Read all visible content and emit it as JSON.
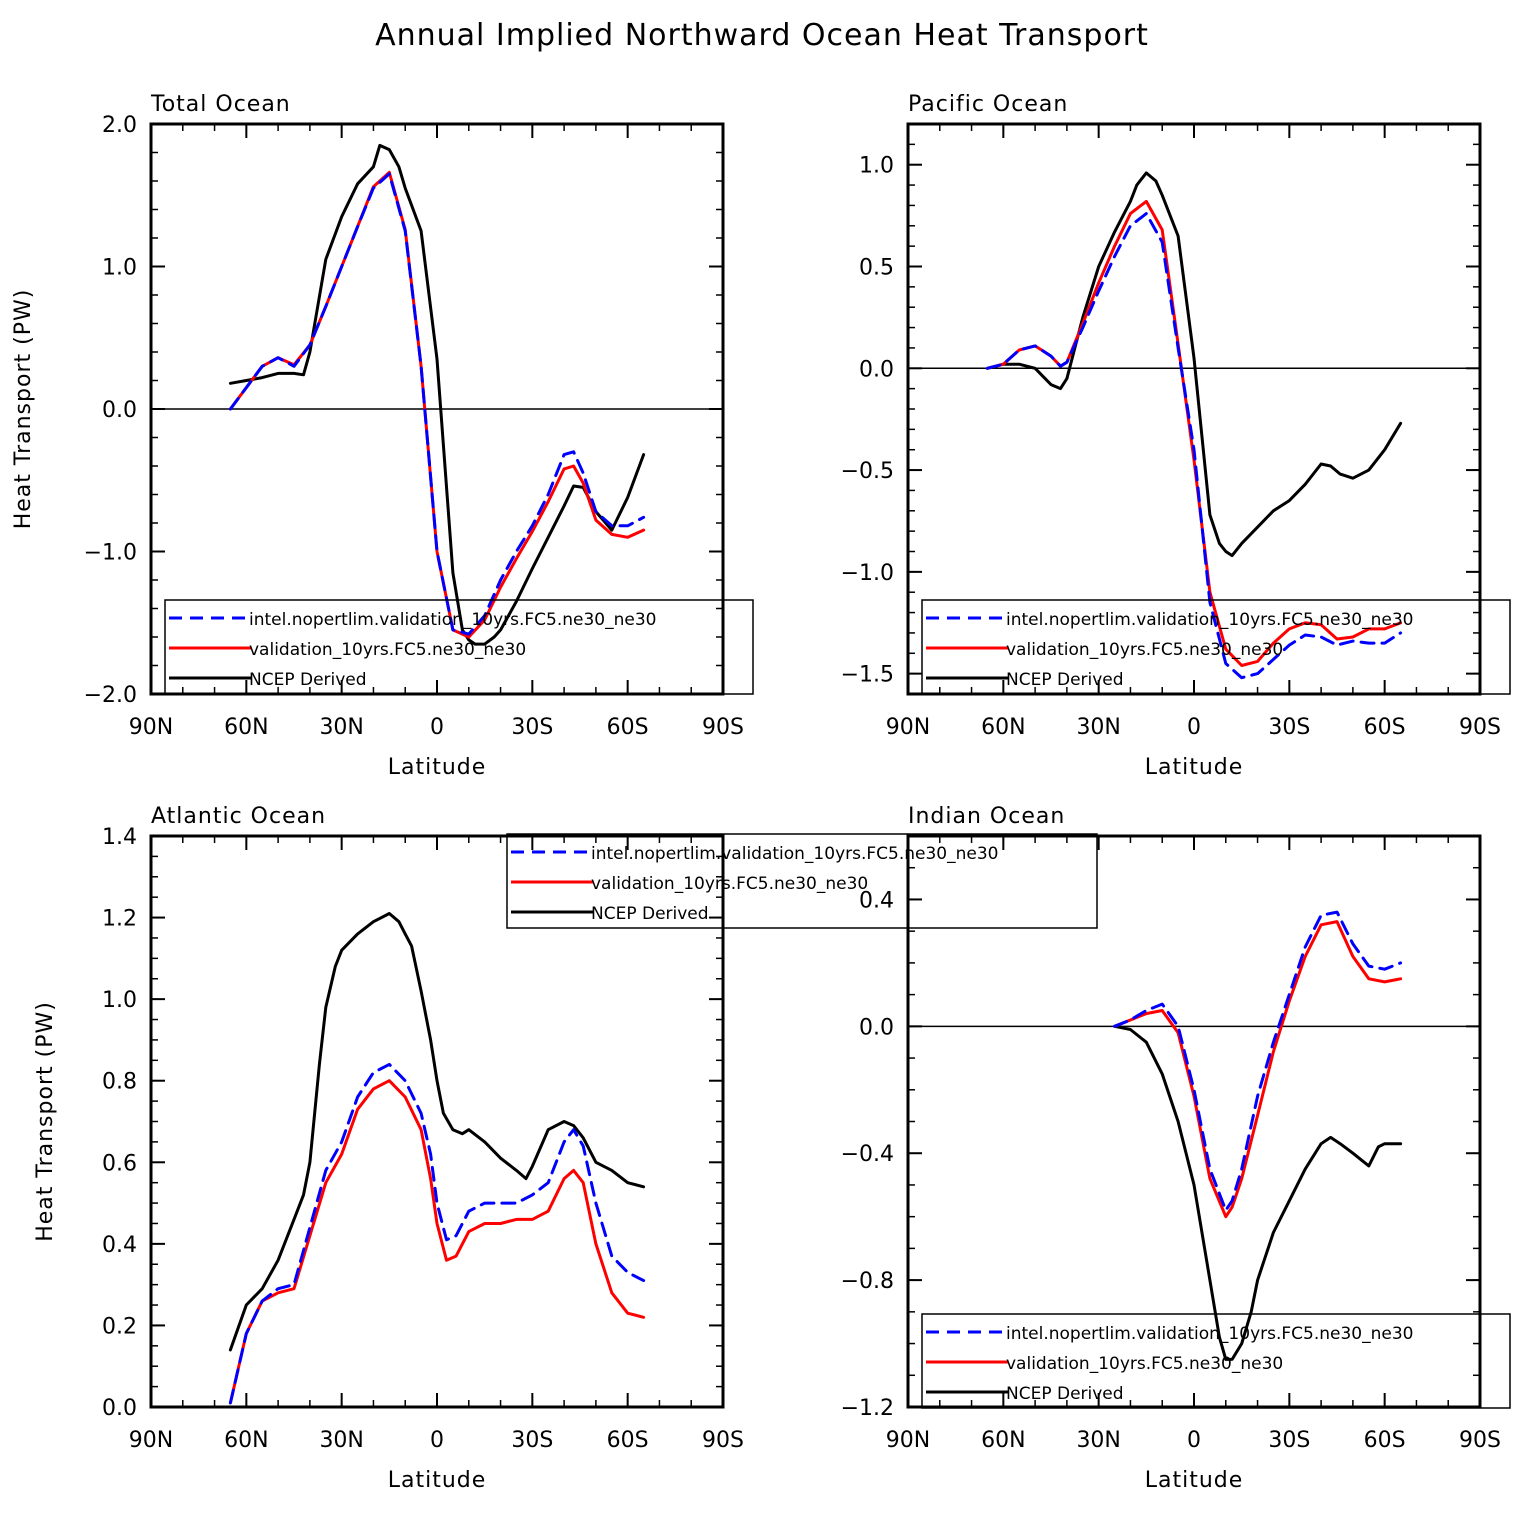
{
  "figure_title": "Annual Implied Northward Ocean Heat Transport",
  "colors": {
    "model1": "#0000ff",
    "model2": "#ff0000",
    "obs": "#000000",
    "axes": "#000000"
  },
  "chart_data": [
    {
      "type": "line",
      "title": "Total Ocean",
      "xlabel": "Latitude",
      "ylabel": "Heat Transport (PW)",
      "xlim": [
        90,
        -90
      ],
      "ylim": [
        -2.0,
        2.0
      ],
      "xticks": [
        90,
        60,
        30,
        0,
        -30,
        -60,
        -90
      ],
      "xtick_labels": [
        "90N",
        "60N",
        "30N",
        "0",
        "30S",
        "60S",
        "90S"
      ],
      "yticks": [
        -2.0,
        -1.0,
        0.0,
        1.0,
        2.0
      ],
      "ytick_labels": [
        "−2.0",
        "−1.0",
        "0.0",
        "1.0",
        "2.0"
      ],
      "yminor_step": 0.2,
      "zero_line": true,
      "legend_position": "lower-left",
      "legend": [
        "intel.nopertlim.validation_10yrs.FC5.ne30_ne30",
        "validation_10yrs.FC5.ne30_ne30",
        "NCEP Derived"
      ],
      "series": [
        {
          "name": "intel.nopertlim.validation_10yrs.FC5.ne30_ne30",
          "style": "dashed",
          "color": "#0000ff",
          "x": [
            65,
            60,
            55,
            50,
            45,
            40,
            35,
            30,
            25,
            20,
            15,
            10,
            5,
            0,
            -5,
            -10,
            -15,
            -20,
            -25,
            -30,
            -35,
            -40,
            -43,
            -46,
            -50,
            -55,
            -60,
            -65
          ],
          "y": [
            0.0,
            0.15,
            0.3,
            0.36,
            0.3,
            0.45,
            0.72,
            1.0,
            1.28,
            1.55,
            1.65,
            1.25,
            0.3,
            -1.0,
            -1.55,
            -1.58,
            -1.45,
            -1.2,
            -1.0,
            -0.82,
            -0.6,
            -0.32,
            -0.3,
            -0.45,
            -0.72,
            -0.82,
            -0.82,
            -0.76
          ]
        },
        {
          "name": "validation_10yrs.FC5.ne30_ne30",
          "style": "solid",
          "color": "#ff0000",
          "x": [
            65,
            60,
            55,
            50,
            45,
            40,
            35,
            30,
            25,
            20,
            15,
            10,
            5,
            0,
            -5,
            -10,
            -15,
            -20,
            -25,
            -30,
            -35,
            -40,
            -43,
            -46,
            -50,
            -55,
            -60,
            -65
          ],
          "y": [
            0.0,
            0.15,
            0.3,
            0.36,
            0.31,
            0.45,
            0.72,
            1.0,
            1.28,
            1.56,
            1.66,
            1.26,
            0.3,
            -1.0,
            -1.55,
            -1.6,
            -1.48,
            -1.25,
            -1.05,
            -0.86,
            -0.65,
            -0.42,
            -0.4,
            -0.52,
            -0.78,
            -0.88,
            -0.9,
            -0.85
          ]
        },
        {
          "name": "NCEP Derived",
          "style": "solid",
          "color": "#000000",
          "x": [
            65,
            60,
            55,
            50,
            45,
            42,
            40,
            35,
            30,
            25,
            20,
            18,
            15,
            12,
            10,
            5,
            0,
            -5,
            -8,
            -10,
            -12,
            -15,
            -18,
            -20,
            -25,
            -30,
            -35,
            -40,
            -43,
            -46,
            -50,
            -55,
            -60,
            -65
          ],
          "y": [
            0.18,
            0.2,
            0.22,
            0.25,
            0.25,
            0.24,
            0.4,
            1.05,
            1.35,
            1.58,
            1.7,
            1.85,
            1.82,
            1.7,
            1.55,
            1.25,
            0.35,
            -1.15,
            -1.55,
            -1.62,
            -1.65,
            -1.65,
            -1.6,
            -1.55,
            -1.35,
            -1.12,
            -0.9,
            -0.68,
            -0.54,
            -0.55,
            -0.72,
            -0.85,
            -0.62,
            -0.32
          ]
        }
      ]
    },
    {
      "type": "line",
      "title": "Pacific Ocean",
      "xlabel": "Latitude",
      "ylabel": "",
      "xlim": [
        90,
        -90
      ],
      "ylim": [
        -1.6,
        1.2
      ],
      "xticks": [
        90,
        60,
        30,
        0,
        -30,
        -60,
        -90
      ],
      "xtick_labels": [
        "90N",
        "60N",
        "30N",
        "0",
        "30S",
        "60S",
        "90S"
      ],
      "yticks": [
        -1.5,
        -1.0,
        -0.5,
        0.0,
        0.5,
        1.0
      ],
      "ytick_labels": [
        "−1.5",
        "−1.0",
        "−0.5",
        "0.0",
        "0.5",
        "1.0"
      ],
      "yminor_step": 0.1,
      "zero_line": true,
      "legend_position": "lower-left",
      "legend": [
        "intel.nopertlim.validation_10yrs.FC5.ne30_ne30",
        "validation_10yrs.FC5.ne30_ne30",
        "NCEP Derived"
      ],
      "series": [
        {
          "name": "intel.nopertlim.validation_10yrs.FC5.ne30_ne30",
          "style": "dashed",
          "color": "#0000ff",
          "x": [
            65,
            60,
            55,
            50,
            45,
            42,
            40,
            35,
            30,
            25,
            20,
            15,
            10,
            5,
            0,
            -5,
            -10,
            -15,
            -20,
            -25,
            -30,
            -35,
            -40,
            -45,
            -50,
            -55,
            -60,
            -65
          ],
          "y": [
            0.0,
            0.02,
            0.09,
            0.11,
            0.06,
            0.01,
            0.03,
            0.2,
            0.38,
            0.55,
            0.7,
            0.76,
            0.62,
            0.1,
            -0.4,
            -1.15,
            -1.45,
            -1.52,
            -1.5,
            -1.43,
            -1.36,
            -1.31,
            -1.32,
            -1.36,
            -1.34,
            -1.35,
            -1.35,
            -1.3
          ]
        },
        {
          "name": "validation_10yrs.FC5.ne30_ne30",
          "style": "solid",
          "color": "#ff0000",
          "x": [
            65,
            60,
            55,
            50,
            45,
            42,
            40,
            35,
            30,
            25,
            20,
            15,
            10,
            5,
            0,
            -5,
            -10,
            -15,
            -20,
            -25,
            -30,
            -35,
            -40,
            -45,
            -50,
            -55,
            -60,
            -65
          ],
          "y": [
            0.0,
            0.02,
            0.09,
            0.11,
            0.06,
            0.01,
            0.03,
            0.22,
            0.42,
            0.6,
            0.76,
            0.82,
            0.68,
            0.12,
            -0.45,
            -1.1,
            -1.38,
            -1.46,
            -1.44,
            -1.35,
            -1.28,
            -1.25,
            -1.26,
            -1.33,
            -1.32,
            -1.28,
            -1.28,
            -1.25
          ]
        },
        {
          "name": "NCEP Derived",
          "style": "solid",
          "color": "#000000",
          "x": [
            65,
            60,
            55,
            50,
            45,
            42,
            40,
            35,
            30,
            25,
            20,
            18,
            15,
            12,
            10,
            5,
            0,
            -5,
            -8,
            -10,
            -12,
            -15,
            -20,
            -25,
            -30,
            -35,
            -40,
            -43,
            -46,
            -50,
            -55,
            -60,
            -65
          ],
          "y": [
            0.0,
            0.02,
            0.02,
            0.0,
            -0.08,
            -0.1,
            -0.05,
            0.25,
            0.5,
            0.67,
            0.82,
            0.9,
            0.96,
            0.92,
            0.85,
            0.65,
            0.05,
            -0.72,
            -0.86,
            -0.9,
            -0.92,
            -0.86,
            -0.78,
            -0.7,
            -0.65,
            -0.57,
            -0.47,
            -0.48,
            -0.52,
            -0.54,
            -0.5,
            -0.4,
            -0.27
          ]
        }
      ]
    },
    {
      "type": "line",
      "title": "Atlantic Ocean",
      "xlabel": "Latitude",
      "ylabel": "Heat Transport (PW)",
      "xlim": [
        90,
        -90
      ],
      "ylim": [
        0.0,
        1.4
      ],
      "xticks": [
        90,
        60,
        30,
        0,
        -30,
        -60,
        -90
      ],
      "xtick_labels": [
        "90N",
        "60N",
        "30N",
        "0",
        "30S",
        "60S",
        "90S"
      ],
      "yticks": [
        0.0,
        0.2,
        0.4,
        0.6,
        0.8,
        1.0,
        1.2,
        1.4
      ],
      "ytick_labels": [
        "0.0",
        "0.2",
        "0.4",
        "0.6",
        "0.8",
        "1.0",
        "1.2",
        "1.4"
      ],
      "yminor_step": 0.05,
      "zero_line": false,
      "legend_position": "top-center",
      "legend": [
        "intel.nopertlim.validation_10yrs.FC5.ne30_ne30",
        "validation_10yrs.FC5.ne30_ne30",
        "NCEP Derived"
      ],
      "series": [
        {
          "name": "intel.nopertlim.validation_10yrs.FC5.ne30_ne30",
          "style": "dashed",
          "color": "#0000ff",
          "x": [
            65,
            60,
            55,
            50,
            45,
            40,
            35,
            30,
            25,
            20,
            15,
            10,
            5,
            2,
            0,
            -3,
            -6,
            -10,
            -15,
            -20,
            -25,
            -30,
            -35,
            -40,
            -43,
            -46,
            -50,
            -55,
            -60,
            -65
          ],
          "y": [
            0.01,
            0.18,
            0.26,
            0.29,
            0.3,
            0.44,
            0.58,
            0.65,
            0.76,
            0.82,
            0.84,
            0.8,
            0.72,
            0.62,
            0.5,
            0.41,
            0.42,
            0.48,
            0.5,
            0.5,
            0.5,
            0.52,
            0.55,
            0.65,
            0.68,
            0.64,
            0.5,
            0.37,
            0.33,
            0.31
          ]
        },
        {
          "name": "validation_10yrs.FC5.ne30_ne30",
          "style": "solid",
          "color": "#ff0000",
          "x": [
            65,
            60,
            55,
            50,
            45,
            40,
            35,
            30,
            25,
            20,
            15,
            10,
            5,
            2,
            0,
            -3,
            -6,
            -10,
            -15,
            -20,
            -25,
            -30,
            -35,
            -40,
            -43,
            -46,
            -50,
            -55,
            -60,
            -65
          ],
          "y": [
            0.01,
            0.18,
            0.26,
            0.28,
            0.29,
            0.42,
            0.55,
            0.62,
            0.73,
            0.78,
            0.8,
            0.76,
            0.68,
            0.56,
            0.45,
            0.36,
            0.37,
            0.43,
            0.45,
            0.45,
            0.46,
            0.46,
            0.48,
            0.56,
            0.58,
            0.55,
            0.4,
            0.28,
            0.23,
            0.22
          ]
        },
        {
          "name": "NCEP Derived",
          "style": "solid",
          "color": "#000000",
          "x": [
            65,
            60,
            55,
            50,
            45,
            42,
            40,
            37,
            35,
            32,
            30,
            25,
            20,
            15,
            12,
            10,
            8,
            5,
            2,
            0,
            -2,
            -5,
            -8,
            -10,
            -15,
            -20,
            -25,
            -28,
            -30,
            -35,
            -40,
            -43,
            -46,
            -50,
            -55,
            -60,
            -65
          ],
          "y": [
            0.14,
            0.25,
            0.29,
            0.36,
            0.46,
            0.52,
            0.6,
            0.84,
            0.98,
            1.08,
            1.12,
            1.16,
            1.19,
            1.21,
            1.19,
            1.16,
            1.13,
            1.02,
            0.9,
            0.8,
            0.72,
            0.68,
            0.67,
            0.68,
            0.65,
            0.61,
            0.58,
            0.56,
            0.59,
            0.68,
            0.7,
            0.69,
            0.66,
            0.6,
            0.58,
            0.55,
            0.54
          ]
        }
      ]
    },
    {
      "type": "line",
      "title": "Indian Ocean",
      "xlabel": "Latitude",
      "ylabel": "",
      "xlim": [
        90,
        -90
      ],
      "ylim": [
        -1.2,
        0.6
      ],
      "xticks": [
        90,
        60,
        30,
        0,
        -30,
        -60,
        -90
      ],
      "xtick_labels": [
        "90N",
        "60N",
        "30N",
        "0",
        "30S",
        "60S",
        "90S"
      ],
      "yticks": [
        -1.2,
        -0.8,
        -0.4,
        0.0,
        0.4
      ],
      "ytick_labels": [
        "−1.2",
        "−0.8",
        "−0.4",
        "0.0",
        "0.4"
      ],
      "yminor_step": 0.1,
      "zero_line": true,
      "legend_position": "lower-right",
      "legend": [
        "intel.nopertlim.validation_10yrs.FC5.ne30_ne30",
        "validation_10yrs.FC5.ne30_ne30",
        "NCEP Derived"
      ],
      "series": [
        {
          "name": "intel.nopertlim.validation_10yrs.FC5.ne30_ne30",
          "style": "dashed",
          "color": "#0000ff",
          "x": [
            25,
            20,
            15,
            10,
            5,
            0,
            -5,
            -10,
            -12,
            -15,
            -20,
            -25,
            -30,
            -35,
            -40,
            -45,
            -50,
            -55,
            -60,
            -65
          ],
          "y": [
            0.0,
            0.02,
            0.05,
            0.07,
            0.0,
            -0.2,
            -0.45,
            -0.58,
            -0.55,
            -0.45,
            -0.22,
            -0.05,
            0.1,
            0.25,
            0.35,
            0.36,
            0.26,
            0.19,
            0.18,
            0.2
          ]
        },
        {
          "name": "validation_10yrs.FC5.ne30_ne30",
          "style": "solid",
          "color": "#ff0000",
          "x": [
            25,
            20,
            15,
            10,
            5,
            0,
            -5,
            -10,
            -12,
            -15,
            -20,
            -25,
            -30,
            -35,
            -40,
            -45,
            -50,
            -55,
            -60,
            -65
          ],
          "y": [
            0.0,
            0.02,
            0.04,
            0.05,
            -0.02,
            -0.22,
            -0.48,
            -0.6,
            -0.57,
            -0.48,
            -0.28,
            -0.08,
            0.08,
            0.22,
            0.32,
            0.33,
            0.22,
            0.15,
            0.14,
            0.15
          ]
        },
        {
          "name": "NCEP Derived",
          "style": "solid",
          "color": "#000000",
          "x": [
            25,
            20,
            15,
            10,
            5,
            0,
            -5,
            -8,
            -10,
            -12,
            -15,
            -18,
            -20,
            -25,
            -30,
            -35,
            -40,
            -43,
            -46,
            -50,
            -55,
            -58,
            -60,
            -65
          ],
          "y": [
            0.0,
            -0.01,
            -0.05,
            -0.15,
            -0.3,
            -0.5,
            -0.8,
            -0.98,
            -1.05,
            -1.05,
            -1.0,
            -0.9,
            -0.8,
            -0.65,
            -0.55,
            -0.45,
            -0.37,
            -0.35,
            -0.37,
            -0.4,
            -0.44,
            -0.38,
            -0.37,
            -0.37
          ]
        }
      ]
    }
  ]
}
